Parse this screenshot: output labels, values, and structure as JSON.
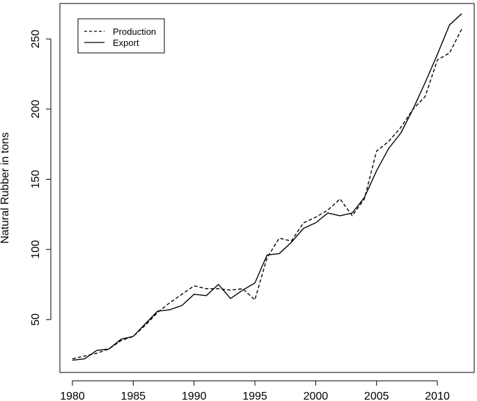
{
  "chart_data": {
    "type": "line",
    "title": "",
    "xlabel": "",
    "ylabel": "Natural Rubber in tons",
    "xlim": [
      1980,
      2012
    ],
    "ylim": [
      20,
      268
    ],
    "grid": false,
    "legend_position": "top-left",
    "x_ticks": [
      "1980",
      "1985",
      "1990",
      "1995",
      "2000",
      "2005",
      "2010"
    ],
    "y_ticks": [
      "50",
      "100",
      "150",
      "200",
      "250"
    ],
    "x": [
      1980,
      1981,
      1982,
      1983,
      1984,
      1985,
      1986,
      1987,
      1988,
      1989,
      1990,
      1991,
      1992,
      1993,
      1994,
      1995,
      1996,
      1997,
      1998,
      1999,
      2000,
      2001,
      2002,
      2003,
      2004,
      2005,
      2006,
      2007,
      2008,
      2009,
      2010,
      2011,
      2012
    ],
    "series": [
      {
        "name": "Production",
        "line_style": "dashed",
        "color": "#000000",
        "values": [
          22,
          24,
          26,
          29,
          35,
          38,
          46,
          55,
          62,
          68,
          74,
          72,
          72,
          71,
          72,
          64,
          94,
          108,
          106,
          119,
          123,
          128,
          136,
          124,
          136,
          170,
          177,
          187,
          200,
          209,
          235,
          240,
          257
        ]
      },
      {
        "name": "Export",
        "line_style": "solid",
        "color": "#000000",
        "values": [
          21,
          22,
          28,
          29,
          36,
          38,
          47,
          56,
          57,
          60,
          68,
          67,
          75,
          65,
          71,
          76,
          96,
          97,
          105,
          115,
          119,
          126,
          124,
          126,
          137,
          156,
          172,
          183,
          200,
          219,
          239,
          260,
          268
        ]
      }
    ]
  }
}
